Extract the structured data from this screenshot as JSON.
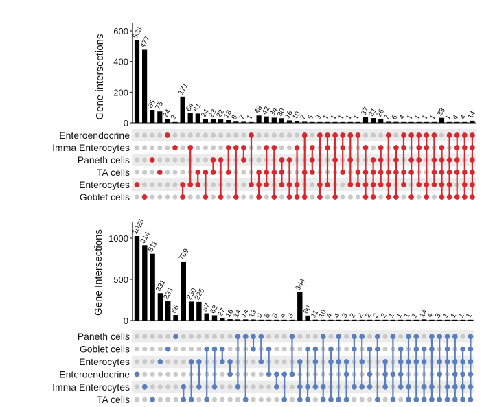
{
  "colors": {
    "bar": "#000000",
    "dot_off": "#c9c9c9",
    "stripe": "#ececec",
    "red": "#d9272e",
    "blue": "#5b7fbd"
  },
  "chart_data": [
    {
      "type": "bar",
      "subtype": "upset",
      "ylabel": "Gene intersections",
      "ylim": [
        0,
        600
      ],
      "yticks": [
        0,
        200,
        400,
        600
      ],
      "accent_key": "red",
      "sets": [
        "Enteroendocrine",
        "Imma Enterocytes",
        "Paneth cells",
        "TA cells",
        "Enterocytes",
        "Goblet cells"
      ],
      "values": [
        538,
        477,
        85,
        75,
        24,
        2,
        171,
        64,
        61,
        24,
        23,
        22,
        18,
        8,
        7,
        1,
        48,
        42,
        34,
        30,
        16,
        10,
        7,
        5,
        3,
        1,
        1,
        1,
        1,
        1,
        37,
        31,
        26,
        7,
        6,
        4,
        1,
        1,
        1,
        1,
        33,
        1,
        4,
        4,
        14
      ],
      "labels": [
        "538",
        "477",
        "85",
        "75",
        "24",
        "2",
        "171",
        "64",
        "61",
        "24",
        "23",
        "22",
        "18",
        "8",
        "7",
        "1",
        "48",
        "42",
        "34",
        "30",
        "16",
        "10",
        "7",
        "5",
        "3",
        "1",
        "1",
        "1",
        "1",
        "1",
        "37",
        "31",
        "26",
        "7",
        "6",
        "4",
        "1",
        "1",
        "1",
        "1",
        "33",
        "1",
        "4",
        "4",
        "14"
      ],
      "combinations": [
        [
          4
        ],
        [
          5
        ],
        [
          2
        ],
        [
          3
        ],
        [
          0
        ],
        [
          1
        ],
        [
          4,
          5
        ],
        [
          1,
          4
        ],
        [
          3,
          4
        ],
        [
          3,
          5
        ],
        [
          2,
          3
        ],
        [
          2,
          5
        ],
        [
          1,
          3
        ],
        [
          1,
          5
        ],
        [
          1,
          2
        ],
        [
          0,
          4
        ],
        [
          3,
          4,
          5
        ],
        [
          1,
          3,
          4
        ],
        [
          1,
          3,
          5
        ],
        [
          2,
          3,
          4
        ],
        [
          2,
          4,
          5
        ],
        [
          1,
          4,
          5
        ],
        [
          0,
          3,
          5
        ],
        [
          1,
          2,
          3
        ],
        [
          0,
          4,
          5
        ],
        [
          0,
          1,
          4
        ],
        [
          0,
          2,
          5
        ],
        [
          0,
          1,
          3
        ],
        [
          0,
          2,
          4
        ],
        [
          0,
          3,
          4
        ],
        [
          1,
          3,
          4,
          5
        ],
        [
          2,
          3,
          4,
          5
        ],
        [
          1,
          2,
          3,
          4
        ],
        [
          0,
          3,
          4,
          5
        ],
        [
          1,
          2,
          3,
          5
        ],
        [
          0,
          1,
          3,
          4
        ],
        [
          0,
          2,
          3,
          5
        ],
        [
          0,
          1,
          2,
          4
        ],
        [
          0,
          1,
          4,
          5
        ],
        [
          0,
          2,
          3,
          4
        ],
        [
          1,
          2,
          3,
          4,
          5
        ],
        [
          0,
          2,
          3,
          4,
          5
        ],
        [
          0,
          1,
          2,
          3,
          5
        ],
        [
          0,
          1,
          3,
          4,
          5
        ],
        [
          0,
          1,
          2,
          3,
          4,
          5
        ]
      ]
    },
    {
      "type": "bar",
      "subtype": "upset",
      "ylabel": "Gene Intersections",
      "ylim": [
        0,
        1100
      ],
      "yticks": [
        0,
        500,
        1000
      ],
      "accent_key": "blue",
      "sets": [
        "Paneth cells",
        "Goblet cells",
        "Enterocytes",
        "Enteroendocrine",
        "Imma Enterocytes",
        "TA cells"
      ],
      "values": [
        1025,
        914,
        811,
        331,
        233,
        66,
        709,
        230,
        226,
        87,
        63,
        27,
        16,
        14,
        14,
        13,
        9,
        8,
        8,
        4,
        3,
        344,
        60,
        11,
        10,
        4,
        4,
        3,
        2,
        2,
        2,
        2,
        2,
        1,
        1,
        1,
        1,
        14,
        4,
        3,
        1,
        1,
        1,
        1
      ],
      "labels": [
        "1025",
        "914",
        "811",
        "331",
        "233",
        "66",
        "709",
        "230",
        "226",
        "87",
        "63",
        "27",
        "16",
        "14",
        "14",
        "13",
        "9",
        "8",
        "8",
        "4",
        "3",
        "344",
        "60",
        "11",
        "10",
        "4",
        "4",
        "3",
        "2",
        "2",
        "2",
        "2",
        "2",
        "1",
        "1",
        "1",
        "1",
        "14",
        "4",
        "3",
        "1",
        "1",
        "1",
        "1"
      ],
      "combinations": [
        [
          3
        ],
        [
          4
        ],
        [
          5
        ],
        [
          2
        ],
        [
          1
        ],
        [
          0
        ],
        [
          4,
          5
        ],
        [
          2,
          5
        ],
        [
          2,
          4
        ],
        [
          1,
          5
        ],
        [
          1,
          4
        ],
        [
          1,
          2
        ],
        [
          2,
          3
        ],
        [
          0,
          4
        ],
        [
          0,
          5
        ],
        [
          0,
          1
        ],
        [
          0,
          2
        ],
        [
          1,
          3
        ],
        [
          3,
          4
        ],
        [
          3,
          5
        ],
        [
          0,
          3
        ],
        [
          2,
          4,
          5
        ],
        [
          1,
          4,
          5
        ],
        [
          1,
          2,
          4
        ],
        [
          0,
          4,
          5
        ],
        [
          1,
          2,
          5
        ],
        [
          0,
          2,
          5
        ],
        [
          2,
          3,
          5
        ],
        [
          0,
          1,
          4
        ],
        [
          0,
          2,
          4
        ],
        [
          1,
          3,
          4
        ],
        [
          0,
          1,
          5
        ],
        [
          2,
          3,
          4
        ],
        [
          0,
          3,
          5
        ],
        [
          1,
          2,
          3,
          4
        ],
        [
          0,
          2,
          4,
          5
        ],
        [
          0,
          1,
          2,
          5
        ],
        [
          1,
          2,
          4,
          5
        ],
        [
          0,
          1,
          4,
          5
        ],
        [
          0,
          2,
          3,
          5
        ],
        [
          0,
          1,
          2,
          4,
          5
        ],
        [
          0,
          2,
          3,
          4,
          5
        ],
        [
          1,
          2,
          3,
          4,
          5
        ],
        [
          0,
          1,
          2,
          3,
          4,
          5
        ]
      ]
    }
  ]
}
